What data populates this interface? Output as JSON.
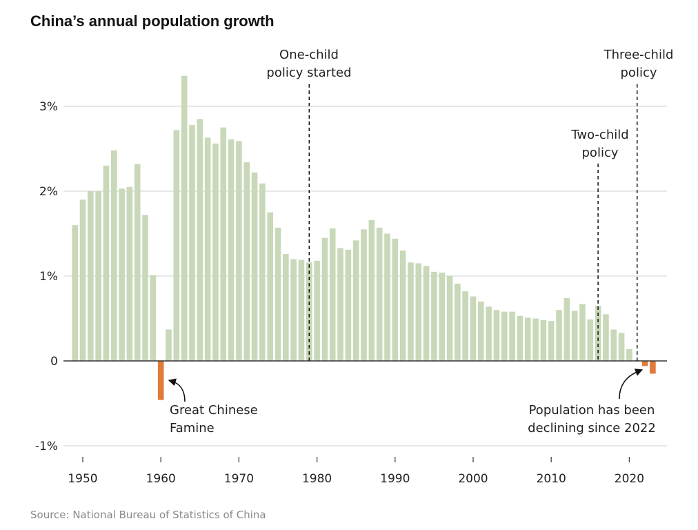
{
  "chart_data": {
    "type": "bar",
    "title": "China’s annual population growth",
    "source": "Source: National Bureau of Statistics of China",
    "xlabel": "",
    "ylabel": "",
    "xlim": [
      1948,
      2025
    ],
    "ylim": [
      -1,
      3
    ],
    "y_ticks": [
      -1,
      0,
      1,
      2,
      3
    ],
    "y_tick_labels": [
      "-1%",
      "0",
      "1%",
      "2%",
      "3%"
    ],
    "x_ticks": [
      1950,
      1960,
      1970,
      1980,
      1990,
      2000,
      2010,
      2020
    ],
    "x_tick_labels": [
      "1950",
      "1960",
      "1970",
      "1980",
      "1990",
      "2000",
      "2010",
      "2020"
    ],
    "grid": "horizontal",
    "unit": "%",
    "colors": {
      "growth": "#c8d8b8",
      "decline": "#e07b39",
      "grid": "#d9d9d9",
      "zero": "#333333",
      "annotation": "#111111"
    },
    "years": [
      1949,
      1950,
      1951,
      1952,
      1953,
      1954,
      1955,
      1956,
      1957,
      1958,
      1959,
      1960,
      1961,
      1962,
      1963,
      1964,
      1965,
      1966,
      1967,
      1968,
      1969,
      1970,
      1971,
      1972,
      1973,
      1974,
      1975,
      1976,
      1977,
      1978,
      1979,
      1980,
      1981,
      1982,
      1983,
      1984,
      1985,
      1986,
      1987,
      1988,
      1989,
      1990,
      1991,
      1992,
      1993,
      1994,
      1995,
      1996,
      1997,
      1998,
      1999,
      2000,
      2001,
      2002,
      2003,
      2004,
      2005,
      2006,
      2007,
      2008,
      2009,
      2010,
      2011,
      2012,
      2013,
      2014,
      2015,
      2016,
      2017,
      2018,
      2019,
      2020,
      2021,
      2022,
      2023
    ],
    "values": [
      1.6,
      1.9,
      2.0,
      2.0,
      2.3,
      2.48,
      2.03,
      2.05,
      2.32,
      1.72,
      1.01,
      -0.46,
      0.37,
      2.72,
      3.36,
      2.78,
      2.85,
      2.63,
      2.56,
      2.75,
      2.61,
      2.59,
      2.34,
      2.22,
      2.09,
      1.75,
      1.57,
      1.26,
      1.2,
      1.19,
      1.16,
      1.18,
      1.45,
      1.56,
      1.33,
      1.31,
      1.42,
      1.55,
      1.66,
      1.57,
      1.5,
      1.44,
      1.3,
      1.16,
      1.15,
      1.12,
      1.05,
      1.04,
      1.0,
      0.91,
      0.82,
      0.76,
      0.7,
      0.64,
      0.6,
      0.58,
      0.58,
      0.53,
      0.51,
      0.5,
      0.48,
      0.47,
      0.6,
      0.74,
      0.59,
      0.67,
      0.49,
      0.65,
      0.55,
      0.37,
      0.33,
      0.14,
      0.01,
      -0.06,
      -0.15
    ],
    "annotations": [
      {
        "year": 1979,
        "lines": [
          "One-child",
          "policy started"
        ],
        "style": "dashed-line"
      },
      {
        "year": 2016,
        "lines": [
          "Two-child",
          "policy"
        ],
        "style": "dashed-line"
      },
      {
        "year": 2021,
        "lines": [
          "Three-child",
          "policy"
        ],
        "style": "dashed-line"
      },
      {
        "year": 1960,
        "lines": [
          "Great Chinese",
          "Famine"
        ],
        "style": "arrow"
      },
      {
        "year": 2022,
        "lines": [
          "Population has been",
          "declining since 2022"
        ],
        "style": "arrow"
      }
    ]
  }
}
